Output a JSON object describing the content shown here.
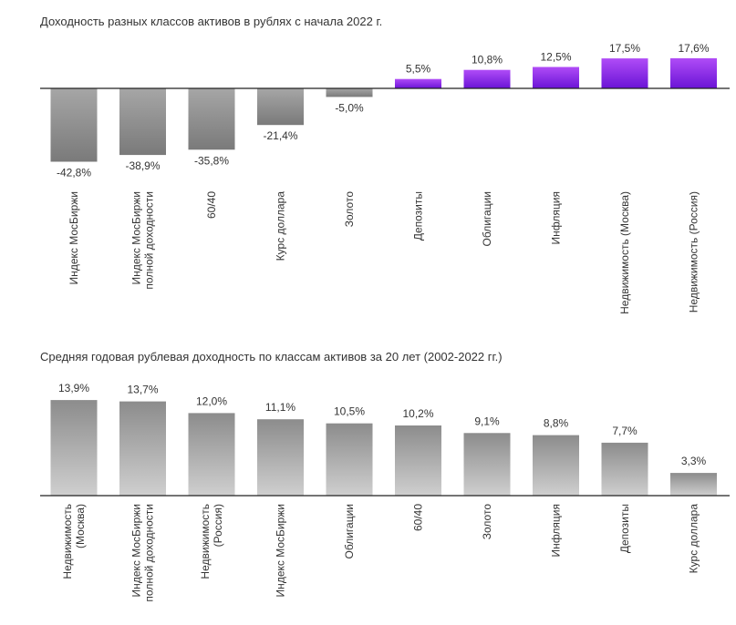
{
  "colors": {
    "negative_bar_top": "#a6a6a6",
    "negative_bar_bottom": "#7a7a7a",
    "positive_bar_top": "#b04cf7",
    "positive_bar_bottom": "#6a14d6",
    "gray_bar_top": "#8c8c8c",
    "gray_bar_bottom": "#cfcfcf",
    "axis": "#222222"
  },
  "chart_data": [
    {
      "type": "bar",
      "title": "Доходность разных классов активов в рублях с начала 2022 г.",
      "categories": [
        [
          "Индекс МосБиржи"
        ],
        [
          "Индекс МосБиржи",
          "полной доходности"
        ],
        [
          "60/40"
        ],
        [
          "Курс доллара"
        ],
        [
          "Золото"
        ],
        [
          "Депозиты"
        ],
        [
          "Облигации"
        ],
        [
          "Инфляция"
        ],
        [
          "Недвижимость (Москва)"
        ],
        [
          "Недвижимость (Россия)"
        ]
      ],
      "values": [
        -42.8,
        -38.9,
        -35.8,
        -21.4,
        -5.0,
        5.5,
        10.8,
        12.5,
        17.5,
        17.6
      ],
      "value_labels": [
        "-42,8%",
        "-38,9%",
        "-35,8%",
        "-21,4%",
        "-5,0%",
        "5,5%",
        "10,8%",
        "12,5%",
        "17,5%",
        "17,6%"
      ],
      "unit": "%",
      "grid": false,
      "legend": "none"
    },
    {
      "type": "bar",
      "title": "Средняя годовая рублевая доходность по классам активов за 20 лет (2002-2022 гг.)",
      "categories": [
        [
          "Недвижимость",
          "(Москва)"
        ],
        [
          "Индекс МосБиржи",
          "полной доходности"
        ],
        [
          "Недвижимость",
          "(Россия)"
        ],
        [
          "Индекс МосБиржи"
        ],
        [
          "Облигации"
        ],
        [
          "60/40"
        ],
        [
          "Золото"
        ],
        [
          "Инфляция"
        ],
        [
          "Депозиты"
        ],
        [
          "Курс доллара"
        ]
      ],
      "values": [
        13.9,
        13.7,
        12.0,
        11.1,
        10.5,
        10.2,
        9.1,
        8.8,
        7.7,
        3.3
      ],
      "value_labels": [
        "13,9%",
        "13,7%",
        "12,0%",
        "11,1%",
        "10,5%",
        "10,2%",
        "9,1%",
        "8,8%",
        "7,7%",
        "3,3%"
      ],
      "unit": "%",
      "grid": false,
      "legend": "none"
    }
  ]
}
